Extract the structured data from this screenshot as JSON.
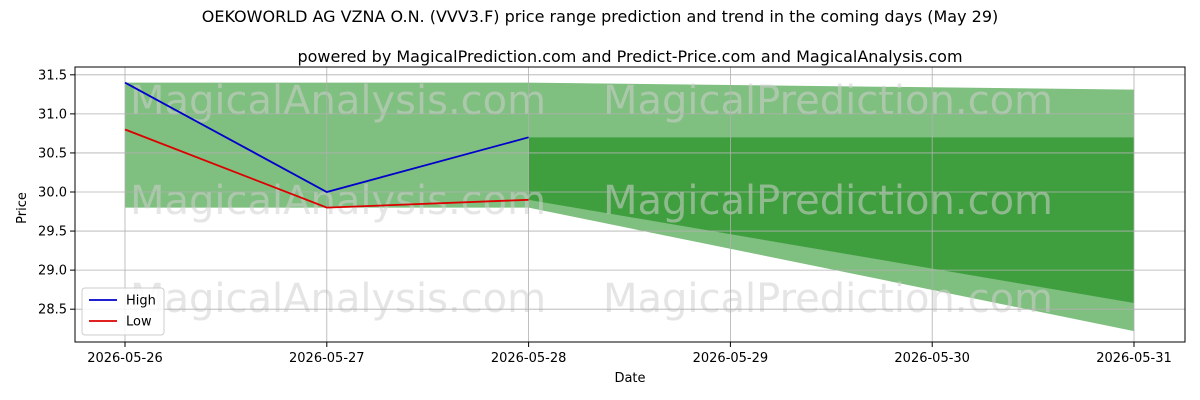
{
  "chart_data": {
    "type": "line",
    "title": "OEKOWORLD AG VZNA O.N. (VVV3.F) price range prediction and trend in the coming days (May 29)",
    "subtitle": "powered by MagicalPrediction.com and Predict-Price.com and MagicalAnalysis.com",
    "xlabel": "Date",
    "ylabel": "Price",
    "x": [
      "2026-05-26",
      "2026-05-27",
      "2026-05-28",
      "2026-05-29",
      "2026-05-30",
      "2026-05-31"
    ],
    "ylim": [
      28.08,
      31.6
    ],
    "yticks": [
      "28.5",
      "29.0",
      "29.5",
      "30.0",
      "30.5",
      "31.0",
      "31.5"
    ],
    "grid": true,
    "legend_position": "bottom-left",
    "series": [
      {
        "name": "High",
        "color": "#0000cc",
        "x": [
          "2026-05-26",
          "2026-05-27",
          "2026-05-28"
        ],
        "values": [
          31.4,
          30.0,
          30.7
        ]
      },
      {
        "name": "Low",
        "color": "#dd0000",
        "x": [
          "2026-05-26",
          "2026-05-27",
          "2026-05-28"
        ],
        "values": [
          30.8,
          29.8,
          29.9
        ]
      }
    ],
    "bands": [
      {
        "kind": "historical-range",
        "color": "#7fbf7f",
        "x": [
          "2026-05-26",
          "2026-05-28"
        ],
        "upper": [
          31.4,
          31.4
        ],
        "lower": [
          29.8,
          29.8
        ]
      },
      {
        "kind": "prediction-outer",
        "color": "#7fbf7f",
        "x": [
          "2026-05-28",
          "2026-05-31"
        ],
        "upper": [
          31.4,
          31.31
        ],
        "lower": [
          29.8,
          28.22
        ]
      },
      {
        "kind": "prediction-inner",
        "color": "#3f9f3f",
        "x": [
          "2026-05-28",
          "2026-05-31"
        ],
        "upper": [
          30.7,
          30.7
        ],
        "lower": [
          29.9,
          28.58
        ]
      }
    ],
    "watermarks": [
      "MagicalAnalysis.com",
      "MagicalPrediction.com"
    ]
  }
}
